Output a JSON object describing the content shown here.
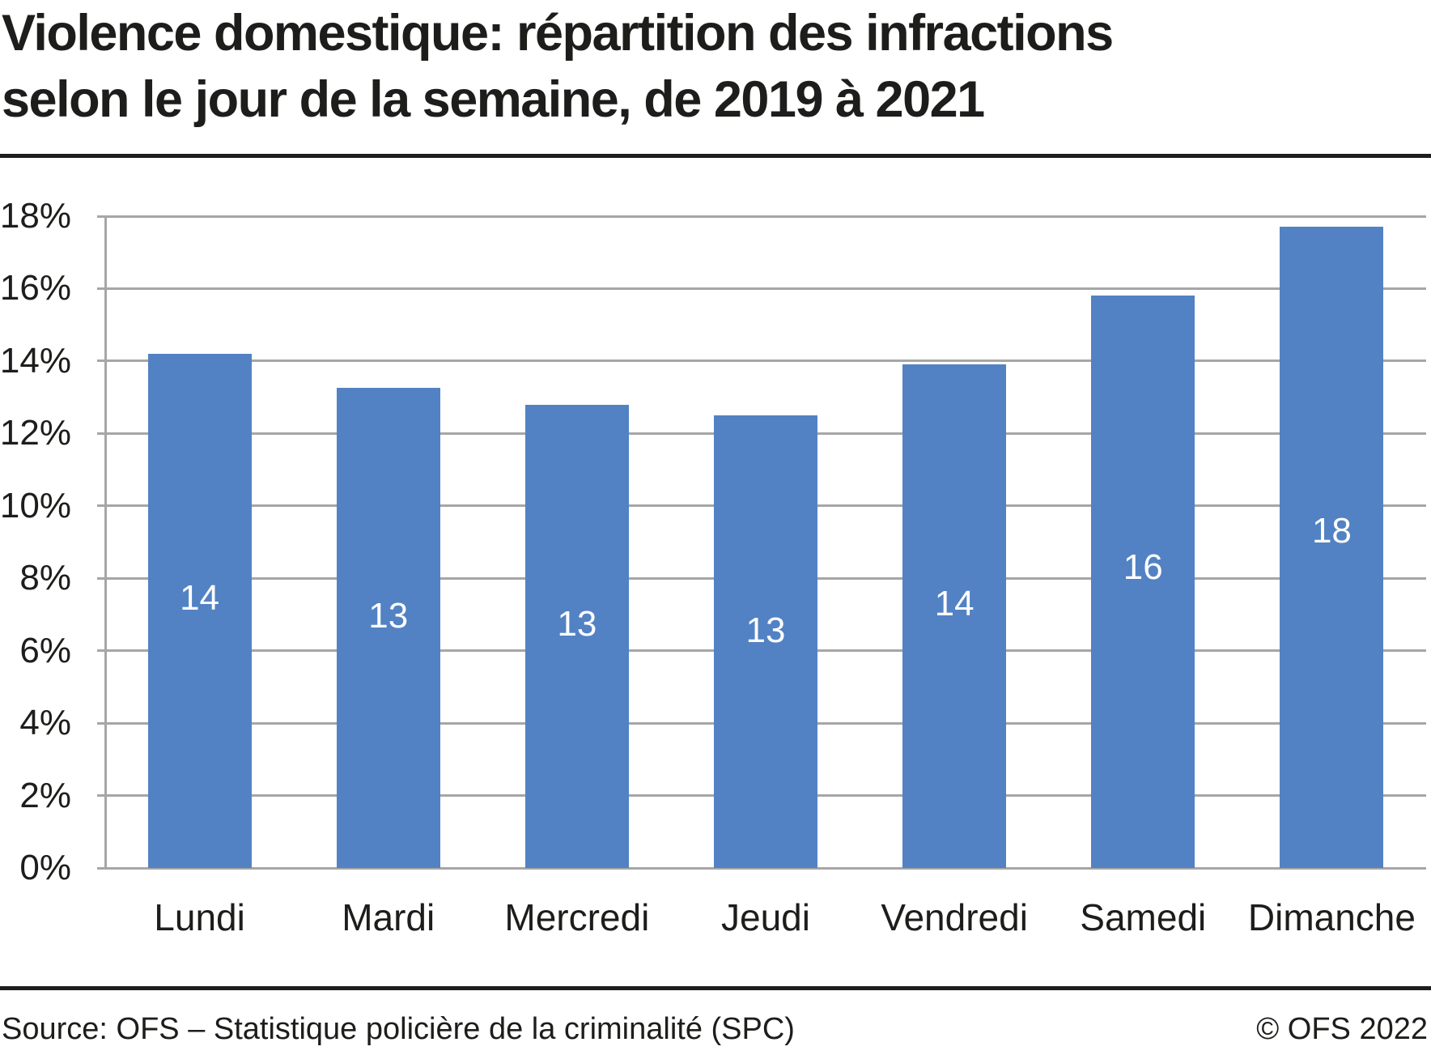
{
  "title": {
    "line1": "Violence domestique: répartition des infractions",
    "line2": "selon le jour de la semaine, de 2019 à 2021"
  },
  "chart_data": {
    "type": "bar",
    "title": "Violence domestique: répartition des infractions selon le jour de la semaine, de 2019 à 2021",
    "categories": [
      "Lundi",
      "Mardi",
      "Mercredi",
      "Jeudi",
      "Vendredi",
      "Samedi",
      "Dimanche"
    ],
    "values": [
      14.2,
      13.25,
      12.8,
      12.5,
      13.9,
      15.8,
      17.7
    ],
    "bar_labels": [
      "14",
      "13",
      "13",
      "13",
      "14",
      "16",
      "18"
    ],
    "xlabel": "",
    "ylabel": "",
    "ylim": [
      0,
      18
    ],
    "ytick_step": 2,
    "ytick_suffix": "%",
    "ytick_labels": [
      "0%",
      "2%",
      "4%",
      "6%",
      "8%",
      "10%",
      "12%",
      "14%",
      "16%",
      "18%"
    ],
    "grid": "horizontal",
    "legend_position": "none",
    "colors": {
      "bar": "#5282c3",
      "bar_label": "#ffffff",
      "gridline": "#a6a6a6",
      "axis": "#a6a6a6",
      "text": "#1d1d1b",
      "rule": "#1d1d1b",
      "background": "#ffffff"
    }
  },
  "footer": {
    "source": "Source: OFS – Statistique policière de la criminalité (SPC)",
    "copyright": "© OFS 2022"
  }
}
